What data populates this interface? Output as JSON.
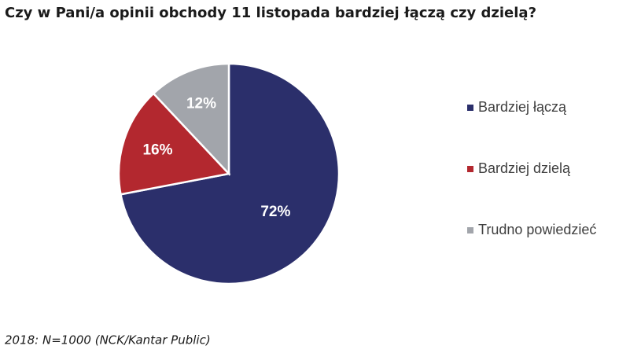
{
  "chart_data": {
    "type": "pie",
    "title": "Czy w Pani/a opinii obchody 11 listopada bardziej łączą czy dzielą?",
    "categories": [
      "Bardziej łączą",
      "Bardziej dzielą",
      "Trudno powiedzieć"
    ],
    "values": [
      72,
      16,
      12
    ],
    "value_labels": [
      "72%",
      "16%",
      "12%"
    ],
    "colors": [
      "#2b2f6b",
      "#b3282f",
      "#a2a5ab"
    ],
    "legend": "right",
    "note": "2018: N=1000 (NCK/Kantar Public)"
  }
}
